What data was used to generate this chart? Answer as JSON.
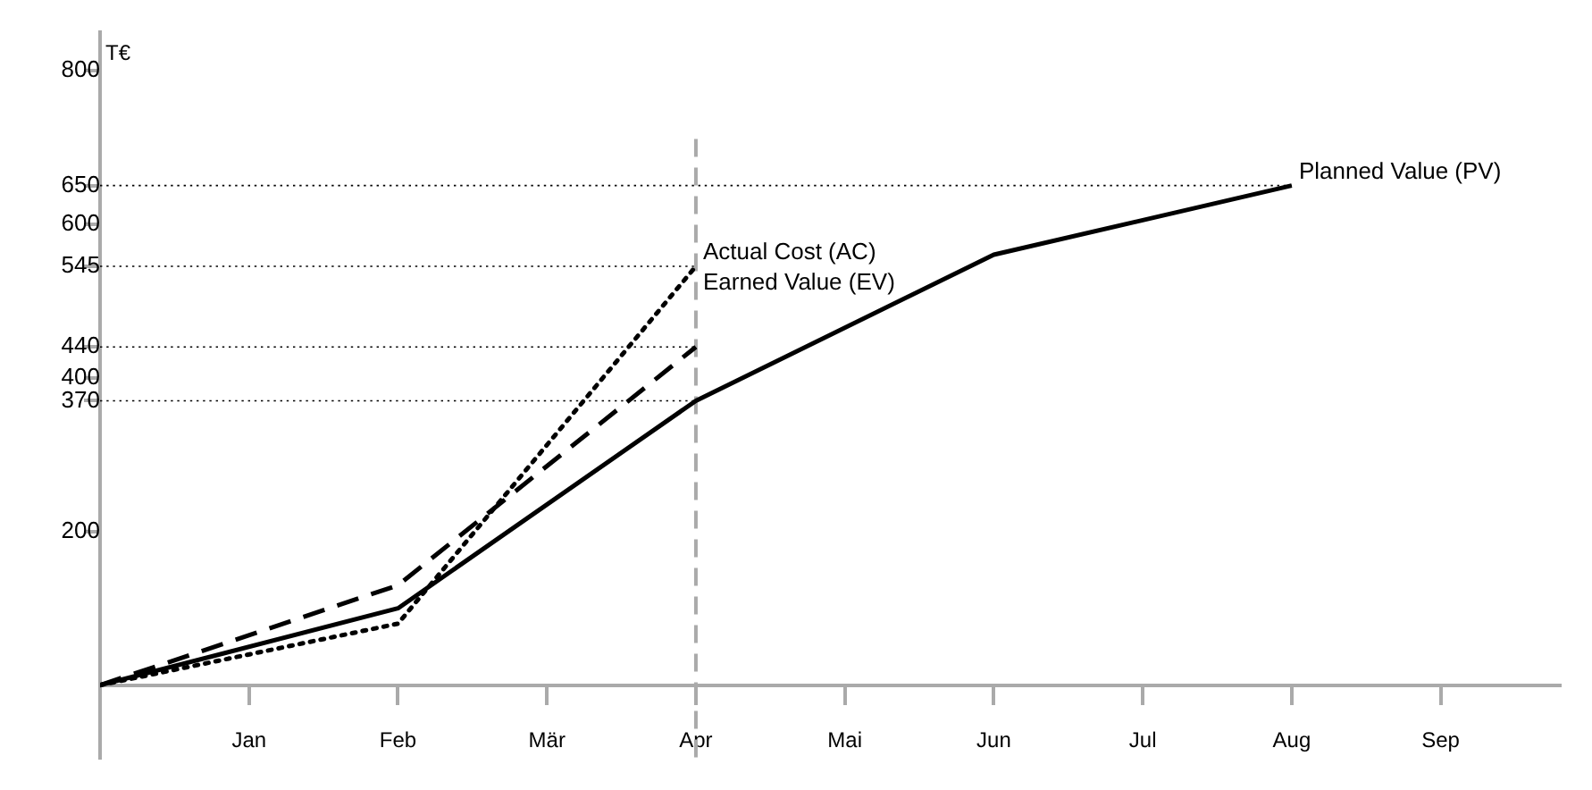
{
  "chart_data": {
    "type": "line",
    "ylabel": "T€",
    "categories": [
      null,
      "Jan",
      "Feb",
      "Mär",
      "Apr",
      "Mai",
      "Jun",
      "Jul",
      "Aug",
      "Sep"
    ],
    "ylim": [
      -95,
      850
    ],
    "yticks": [
      200,
      370,
      400,
      440,
      545,
      600,
      650,
      800
    ],
    "series": [
      {
        "name": "Planned Value (PV)",
        "color": "#000000",
        "line_style": "solid",
        "values": [
          0,
          null,
          100,
          null,
          370,
          null,
          560,
          null,
          650,
          null
        ]
      },
      {
        "name": "Earned Value (EV)",
        "color": "#000000",
        "line_style": "dashed",
        "values": [
          0,
          null,
          130,
          null,
          440,
          null,
          null,
          null,
          null,
          null
        ]
      },
      {
        "name": "Actual Cost (AC)",
        "color": "#000000",
        "line_style": "dotted",
        "values": [
          0,
          null,
          80,
          null,
          545,
          null,
          null,
          null,
          null,
          null
        ]
      }
    ],
    "ref_lines": [
      {
        "axis": "y",
        "value": 370,
        "line_style": "dotted",
        "color": "#000000"
      },
      {
        "axis": "y",
        "value": 440,
        "line_style": "dotted",
        "color": "#000000"
      },
      {
        "axis": "y",
        "value": 545,
        "line_style": "dotted",
        "color": "#000000"
      },
      {
        "axis": "y",
        "value": 650,
        "line_style": "dotted",
        "color": "#000000"
      },
      {
        "axis": "x",
        "value": "Apr",
        "line_style": "dashed",
        "color": "#aaaaaa"
      }
    ],
    "legend": false,
    "grid": false,
    "marker": "none"
  }
}
